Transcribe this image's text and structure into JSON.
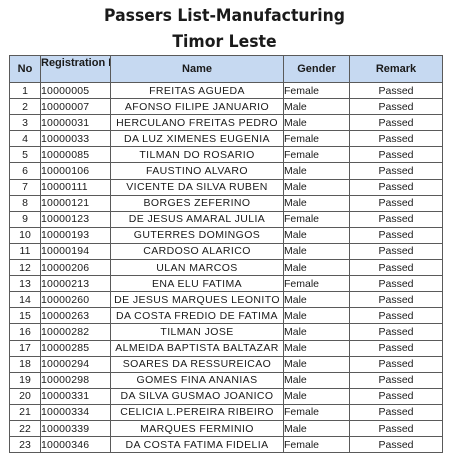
{
  "title_line1": "Passers List-Manufacturing",
  "title_line2": "Timor Leste",
  "columns": {
    "no": "No",
    "registration": "Registration No",
    "name": "Name",
    "gender": "Gender",
    "remark": "Remark"
  },
  "rows": [
    {
      "no": "1",
      "reg": "10000005",
      "name": "FREITAS AGUEDA",
      "gender": "Female",
      "remark": "Passed"
    },
    {
      "no": "2",
      "reg": "10000007",
      "name": "AFONSO FILIPE JANUARIO",
      "gender": "Male",
      "remark": "Passed"
    },
    {
      "no": "3",
      "reg": "10000031",
      "name": "HERCULANO FREITAS PEDRO",
      "gender": "Male",
      "remark": "Passed"
    },
    {
      "no": "4",
      "reg": "10000033",
      "name": "DA LUZ XIMENES EUGENIA",
      "gender": "Female",
      "remark": "Passed"
    },
    {
      "no": "5",
      "reg": "10000085",
      "name": "TILMAN DO ROSARIO",
      "gender": "Female",
      "remark": "Passed"
    },
    {
      "no": "6",
      "reg": "10000106",
      "name": "FAUSTINO ALVARO",
      "gender": "Male",
      "remark": "Passed"
    },
    {
      "no": "7",
      "reg": "10000111",
      "name": "VICENTE DA SILVA RUBEN",
      "gender": "Male",
      "remark": "Passed"
    },
    {
      "no": "8",
      "reg": "10000121",
      "name": "BORGES ZEFERINO",
      "gender": "Male",
      "remark": "Passed"
    },
    {
      "no": "9",
      "reg": "10000123",
      "name": "DE JESUS AMARAL JULIA",
      "gender": "Female",
      "remark": "Passed"
    },
    {
      "no": "10",
      "reg": "10000193",
      "name": "GUTERRES DOMINGOS",
      "gender": "Male",
      "remark": "Passed"
    },
    {
      "no": "11",
      "reg": "10000194",
      "name": "CARDOSO ALARICO",
      "gender": "Male",
      "remark": "Passed"
    },
    {
      "no": "12",
      "reg": "10000206",
      "name": "ULAN MARCOS",
      "gender": "Male",
      "remark": "Passed"
    },
    {
      "no": "13",
      "reg": "10000213",
      "name": "ENA ELU FATIMA",
      "gender": "Female",
      "remark": "Passed"
    },
    {
      "no": "14",
      "reg": "10000260",
      "name": "DE JESUS MARQUES LEONITO",
      "gender": "Male",
      "remark": "Passed"
    },
    {
      "no": "15",
      "reg": "10000263",
      "name": "DA COSTA FREDIO DE FATIMA",
      "gender": "Male",
      "remark": "Passed"
    },
    {
      "no": "16",
      "reg": "10000282",
      "name": "TILMAN JOSE",
      "gender": "Male",
      "remark": "Passed"
    },
    {
      "no": "17",
      "reg": "10000285",
      "name": "ALMEIDA BAPTISTA BALTAZAR",
      "gender": "Male",
      "remark": "Passed"
    },
    {
      "no": "18",
      "reg": "10000294",
      "name": "SOARES DA RESSUREICAO",
      "gender": "Male",
      "remark": "Passed"
    },
    {
      "no": "19",
      "reg": "10000298",
      "name": "GOMES FINA ANANIAS",
      "gender": "Male",
      "remark": "Passed"
    },
    {
      "no": "20",
      "reg": "10000331",
      "name": "DA SILVA GUSMAO JOANICO",
      "gender": "Male",
      "remark": "Passed"
    },
    {
      "no": "21",
      "reg": "10000334",
      "name": "CELICIA L.PEREIRA RIBEIRO",
      "gender": "Female",
      "remark": "Passed"
    },
    {
      "no": "22",
      "reg": "10000339",
      "name": "MARQUES FERMINIO",
      "gender": "Male",
      "remark": "Passed"
    },
    {
      "no": "23",
      "reg": "10000346",
      "name": "DA COSTA FATIMA FIDELIA",
      "gender": "Female",
      "remark": "Passed"
    }
  ]
}
